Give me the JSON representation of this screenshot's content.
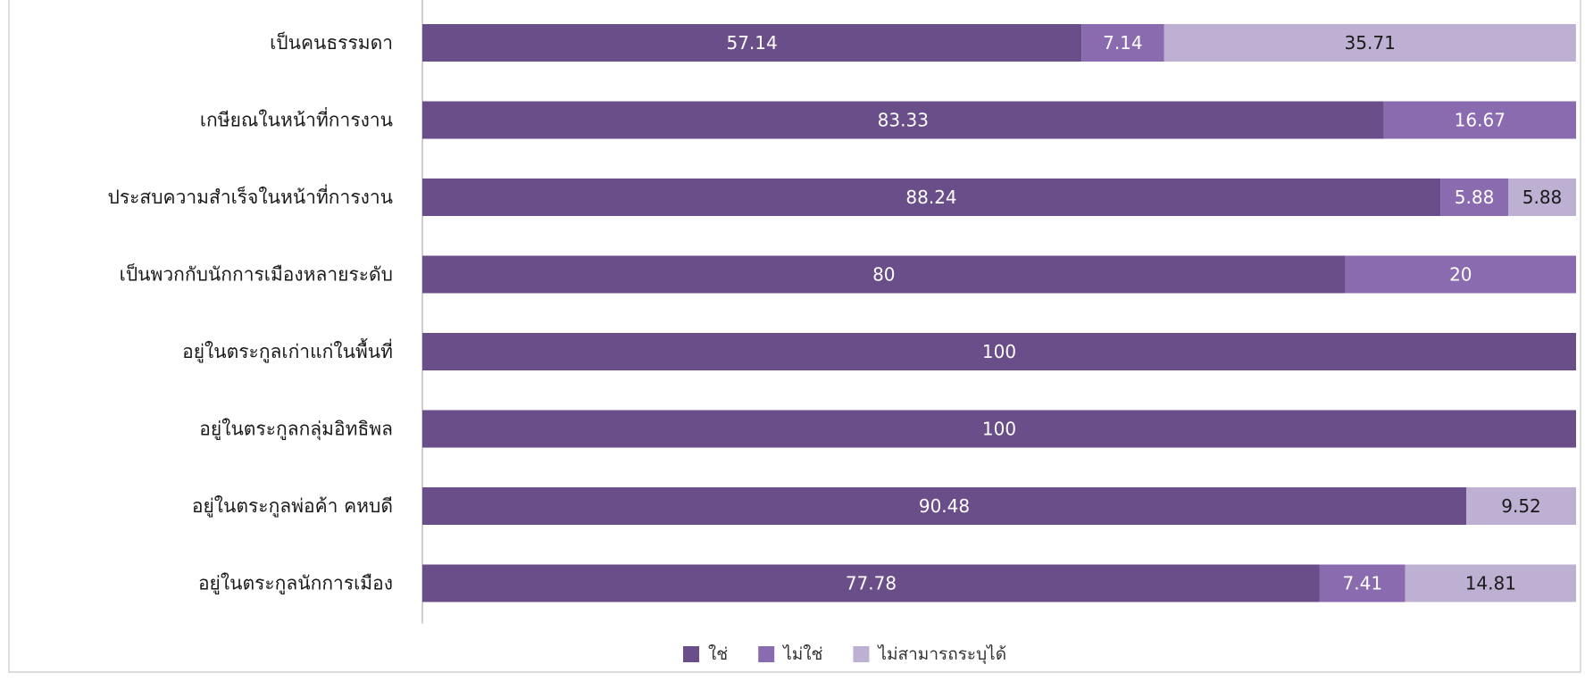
{
  "chart_data": {
    "type": "bar",
    "orientation": "horizontal",
    "stacked": true,
    "categories": [
      "เป็นคนธรรมดา",
      "เกษียณในหน้าที่การงาน",
      "ประสบความสำเร็จในหน้าที่การงาน",
      "เป็นพวกกับนักการเมืองหลายระดับ",
      "อยู่ในตระกูลเก่าแก่ในพื้นที่",
      "อยู่ในตระกูลกลุ่มอิทธิพล",
      "อยู่ในตระกูลพ่อค้า คหบดี",
      "อยู่ในตระกูลนักการเมือง"
    ],
    "series": [
      {
        "name": "ใช่",
        "color": "#6a4e8a",
        "label_color": "#ffffff",
        "values": [
          57.14,
          83.33,
          88.24,
          80,
          100,
          100,
          90.48,
          77.78
        ],
        "labels": [
          "57.14",
          "83.33",
          "88.24",
          "80",
          "100",
          "100",
          "90.48",
          "77.78"
        ]
      },
      {
        "name": "ไม่ใช่",
        "color": "#8a6bb0",
        "label_color": "#ffffff",
        "values": [
          7.14,
          16.67,
          5.88,
          20,
          0,
          0,
          0,
          7.41
        ],
        "labels": [
          "7.14",
          "16.67",
          "5.88",
          "20",
          "",
          "",
          "",
          "7.41"
        ]
      },
      {
        "name": "ไม่สามารถระบุได้",
        "color": "#bdb0d3",
        "label_color": "#1a1a1a",
        "values": [
          35.71,
          0,
          5.88,
          0,
          0,
          0,
          9.52,
          14.81
        ],
        "labels": [
          "35.71",
          "",
          "5.88",
          "",
          "",
          "",
          "9.52",
          "14.81"
        ]
      }
    ],
    "xlim": [
      0,
      100
    ],
    "grid": false,
    "legend_position": "bottom"
  }
}
